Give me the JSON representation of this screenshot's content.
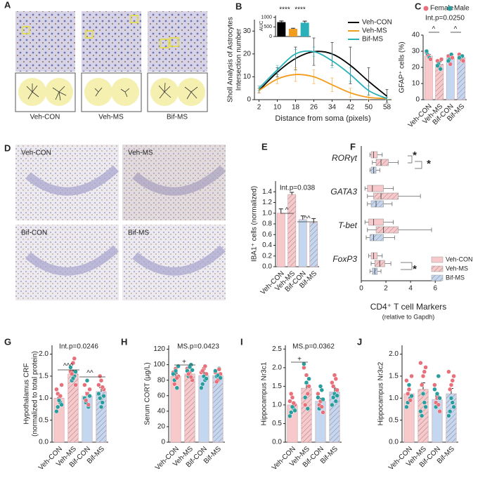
{
  "image_panels": {
    "A": {
      "label": "A",
      "captions": [
        "Veh-CON",
        "Veh-MS",
        "Bif-MS"
      ]
    },
    "D": {
      "label": "D",
      "captions": [
        "Veh-CON",
        "Veh-MS",
        "Bif-CON",
        "Bif-MS"
      ]
    }
  },
  "chart_data": [
    {
      "type": "line",
      "panel": "B",
      "y_label": [
        "Sholl Analysis of Astrocytes",
        "Intersection number"
      ],
      "x_label": "Distance from soma (pixels)",
      "x": [
        2,
        10,
        18,
        26,
        34,
        42,
        50,
        58
      ],
      "xlim": [
        0,
        60
      ],
      "xticks": [
        2,
        10,
        18,
        26,
        34,
        42,
        50,
        58
      ],
      "ylim": [
        0,
        35
      ],
      "yticks": [
        0,
        10,
        20,
        30
      ],
      "legend": "upper right",
      "series": [
        {
          "name": "Veh-CON",
          "color": "#000000",
          "values": [
            4,
            12,
            18,
            21,
            20,
            15,
            8,
            1.5
          ],
          "errors": [
            1,
            2,
            5,
            6,
            5,
            8,
            6,
            3
          ]
        },
        {
          "name": "Veh-MS",
          "color": "#f39c1e",
          "values": [
            4,
            9,
            11,
            10,
            6.5,
            3,
            1,
            0.5
          ],
          "errors": [
            1,
            2,
            3,
            3,
            3,
            2,
            1,
            0.5
          ]
        },
        {
          "name": "Bif-MS",
          "color": "#2ab0b8",
          "values": [
            5,
            13,
            20,
            21,
            17,
            11,
            4,
            0.5
          ],
          "errors": [
            1,
            2,
            2,
            2,
            3,
            3,
            2,
            0.5
          ]
        }
      ]
    },
    {
      "type": "bar",
      "y_label": [
        "AUC"
      ],
      "ylim": [
        0,
        1100
      ],
      "yticks": [
        0,
        500,
        1000
      ],
      "values": [
        750,
        400,
        720
      ],
      "errors": [
        60,
        30,
        80
      ],
      "colors": [
        "#000000",
        "#f39c1e",
        "#2ab0b8"
      ],
      "hatched": [
        false,
        false,
        false
      ],
      "annotations": [
        "****",
        "****"
      ]
    },
    {
      "type": "bar",
      "panel": "C",
      "y_label": [
        "GFAP⁺ cells (%)"
      ],
      "categories": [
        "Veh-CON",
        "Veh-MS",
        "Bif-CON",
        "Bif-MS"
      ],
      "ylim": [
        0,
        40
      ],
      "yticks": [
        0,
        10,
        20,
        30,
        40
      ],
      "values": [
        27,
        22,
        26,
        26
      ],
      "errors": [
        1,
        1.5,
        1.2,
        1
      ],
      "colors": [
        "#f8c9cb",
        "#f8c9cb",
        "#c3d7f0",
        "#c3d7f0"
      ],
      "hatched": [
        false,
        true,
        false,
        true
      ],
      "points": [
        [
          29,
          28,
          27,
          26,
          25,
          30
        ],
        [
          24,
          22,
          20,
          19,
          25,
          21
        ],
        [
          27,
          25,
          22,
          28,
          26,
          24
        ],
        [
          28,
          26,
          25,
          27,
          24,
          26
        ]
      ],
      "point_colors": [
        "#e8707a",
        "#2a9d9f"
      ],
      "legend": [
        {
          "name": "Female",
          "color": "#e8707a"
        },
        {
          "name": "Male",
          "color": "#2a9d9f"
        }
      ],
      "annotations": [
        "Int.p=0.0250",
        "^",
        "^"
      ]
    },
    {
      "type": "bar",
      "panel": "E",
      "y_label": [
        "IBA1⁺ cells (normalized)"
      ],
      "categories": [
        "Veh-CON",
        "Veh-MS",
        "Bif-CON",
        "Bif-MS"
      ],
      "ylim": [
        0,
        1.6
      ],
      "yticks": [
        {
          "value": 0,
          "label": "0.0"
        },
        {
          "value": 0.2,
          "label": "0.2"
        },
        {
          "value": 0.4,
          "label": "0.4"
        },
        {
          "value": 0.6,
          "label": "0.6"
        },
        {
          "value": 0.8,
          "label": "0.8"
        },
        {
          "value": 1,
          "label": "1.0"
        },
        {
          "value": 1.2,
          "label": "1.2"
        },
        {
          "value": 1.4,
          "label": "1.4"
        }
      ],
      "values": [
        1.0,
        1.35,
        0.88,
        0.82
      ],
      "errors": [
        0.08,
        0.04,
        0.07,
        0.08
      ],
      "colors": [
        "#f8c9cb",
        "#f8c9cb",
        "#c3d7f0",
        "#c3d7f0"
      ],
      "hatched": [
        false,
        true,
        false,
        true
      ],
      "annotations": [
        "Int.p=0.038",
        "^",
        "^^"
      ]
    },
    {
      "type": "box",
      "panel": "F",
      "categories": [
        "RORγt",
        "GATA3",
        "T-bet",
        "FoxP3"
      ],
      "x_label": "CD4⁺ T cell Markers",
      "x_sublabel": "(relative to Gapdh)",
      "xlim": [
        0,
        6.5
      ],
      "xticks": [
        0,
        2,
        4,
        6
      ],
      "series": [
        {
          "name": "Veh-CON",
          "color": "#f8c9cb",
          "hatched": false,
          "boxes": [
            [
              0.7,
              0.8,
              1.0,
              1.3,
              1.7
            ],
            [
              0.3,
              0.5,
              0.9,
              1.8,
              2.6
            ],
            [
              0.3,
              0.6,
              1.0,
              1.8,
              2.6
            ],
            [
              0.6,
              0.8,
              1.0,
              1.3,
              1.7
            ]
          ]
        },
        {
          "name": "Veh-MS",
          "color": "#f8c9cb",
          "hatched": true,
          "boxes": [
            [
              0.9,
              1.2,
              1.6,
              2.2,
              3.0
            ],
            [
              0.5,
              1.0,
              1.6,
              3.0,
              4.8
            ],
            [
              0.5,
              1.2,
              1.8,
              3.0,
              5.7
            ],
            [
              0.8,
              1.1,
              1.5,
              1.9,
              2.4
            ]
          ]
        },
        {
          "name": "Bif-MS",
          "color": "#c3d7f0",
          "hatched": true,
          "boxes": [
            [
              0.7,
              0.8,
              1.0,
              1.2,
              1.5
            ],
            [
              0.5,
              0.8,
              1.2,
              1.8,
              2.5
            ],
            [
              0.4,
              0.7,
              1.0,
              1.8,
              2.7
            ],
            [
              0.7,
              0.9,
              1.1,
              1.3,
              1.6
            ]
          ]
        }
      ],
      "annotations": [
        "*",
        "*",
        "*"
      ]
    },
    {
      "type": "bar",
      "panel": "G",
      "y_label": [
        "Hypothalamus CRF",
        "(normalized to total protein)"
      ],
      "categories": [
        "Veh-CON",
        "Veh-MS",
        "Bif-CON",
        "Bif-MS"
      ],
      "ylim": [
        0,
        2.2
      ],
      "yticks": [
        {
          "value": 0,
          "label": "0.0"
        },
        {
          "value": 0.5,
          "label": "0.5"
        },
        {
          "value": 1,
          "label": "1.0"
        },
        {
          "value": 1.5,
          "label": "1.5"
        },
        {
          "value": 2,
          "label": "2.0"
        }
      ],
      "values": [
        1.0,
        1.55,
        1.05,
        1.15
      ],
      "errors": [
        0.07,
        0.08,
        0.08,
        0.09
      ],
      "colors": [
        "#f8c9cb",
        "#f8c9cb",
        "#c3d7f0",
        "#c3d7f0"
      ],
      "hatched": [
        false,
        true,
        false,
        true
      ],
      "points": [
        [
          1.2,
          0.8,
          1.0,
          0.9,
          1.3,
          0.7,
          1.1,
          0.95,
          1.05,
          0.85
        ],
        [
          1.6,
          1.4,
          1.8,
          1.5,
          1.3,
          1.7,
          1.55,
          1.45,
          1.9,
          1.6
        ],
        [
          1.3,
          0.9,
          1.1,
          0.8,
          1.2,
          1.0,
          0.95,
          1.4,
          0.85,
          1.05
        ],
        [
          1.3,
          1.0,
          1.4,
          0.9,
          1.2,
          1.1,
          1.5,
          0.8,
          1.25,
          1.05
        ]
      ],
      "point_colors": [
        "#e8707a",
        "#2a9d9f"
      ],
      "annotations": [
        "Int.p=0.0246",
        "^^^",
        "^^"
      ]
    },
    {
      "type": "bar",
      "panel": "H",
      "y_label": [
        "Serum CORT (μg/L)"
      ],
      "categories": [
        "Veh-CON",
        "Veh-MS",
        "Bif-CON",
        "Bif-MS"
      ],
      "ylim": [
        0,
        125
      ],
      "yticks": [
        0,
        20,
        40,
        60,
        80,
        100,
        120
      ],
      "values": [
        85,
        88,
        86,
        86
      ],
      "errors": [
        4,
        3,
        4,
        3
      ],
      "colors": [
        "#f8c9cb",
        "#f8c9cb",
        "#c3d7f0",
        "#c3d7f0"
      ],
      "hatched": [
        false,
        true,
        false,
        true
      ],
      "points": [
        [
          90,
          80,
          95,
          70,
          85,
          88,
          75,
          92,
          83,
          98
        ],
        [
          95,
          85,
          90,
          100,
          80,
          92,
          88,
          97,
          84,
          93
        ],
        [
          90,
          75,
          95,
          80,
          88,
          70,
          92,
          85,
          98,
          82
        ],
        [
          90,
          85,
          80,
          95,
          88,
          92,
          78,
          86,
          94,
          83
        ]
      ],
      "point_colors": [
        "#e8707a",
        "#2a9d9f"
      ],
      "annotations": [
        "MS.p=0.0423",
        "+"
      ]
    },
    {
      "type": "bar",
      "panel": "I",
      "y_label": [
        "Hippocampus Nr3c1"
      ],
      "categories": [
        "Veh-CON",
        "Veh-MS",
        "Bif-CON",
        "Bif-MS"
      ],
      "ylim": [
        0,
        2.6
      ],
      "yticks": [
        {
          "value": 0,
          "label": "0.0"
        },
        {
          "value": 0.5,
          "label": "0.5"
        },
        {
          "value": 1,
          "label": "1.0"
        },
        {
          "value": 1.5,
          "label": "1.5"
        },
        {
          "value": 2,
          "label": "2.0"
        },
        {
          "value": 2.5,
          "label": "2.5"
        }
      ],
      "values": [
        1.0,
        1.45,
        1.1,
        1.35
      ],
      "errors": [
        0.07,
        0.12,
        0.08,
        0.1
      ],
      "colors": [
        "#f8c9cb",
        "#f8c9cb",
        "#c3d7f0",
        "#c3d7f0"
      ],
      "hatched": [
        false,
        true,
        false,
        true
      ],
      "points": [
        [
          1.1,
          0.8,
          1.2,
          0.9,
          1.0,
          0.7,
          1.3,
          0.95,
          1.05,
          0.85
        ],
        [
          2.0,
          1.2,
          1.8,
          0.9,
          1.5,
          2.1,
          1.0,
          1.6,
          1.3,
          1.7
        ],
        [
          1.3,
          0.9,
          1.1,
          1.4,
          0.8,
          1.2,
          1.0,
          1.5,
          0.95,
          1.15
        ],
        [
          1.6,
          1.2,
          1.8,
          1.1,
          1.4,
          1.0,
          1.5,
          1.3,
          1.7,
          1.25
        ]
      ],
      "point_colors": [
        "#e8707a",
        "#2a9d9f"
      ],
      "annotations": [
        "MS.p=0.0362",
        "+"
      ]
    },
    {
      "type": "bar",
      "panel": "J",
      "y_label": [
        "Hippocampus Nr3c2"
      ],
      "categories": [
        "Veh-CON",
        "Veh-MS",
        "Bif-CON",
        "Bif-MS"
      ],
      "ylim": [
        0,
        2.2
      ],
      "yticks": [
        {
          "value": 0,
          "label": "0.0"
        },
        {
          "value": 0.5,
          "label": "0.5"
        },
        {
          "value": 1,
          "label": "1.0"
        },
        {
          "value": 1.5,
          "label": "1.5"
        },
        {
          "value": 2,
          "label": "2.0"
        }
      ],
      "values": [
        1.1,
        1.2,
        0.97,
        1.1
      ],
      "errors": [
        0.08,
        0.15,
        0.08,
        0.12
      ],
      "colors": [
        "#f8c9cb",
        "#f8c9cb",
        "#c3d7f0",
        "#c3d7f0"
      ],
      "hatched": [
        false,
        true,
        false,
        true
      ],
      "points": [
        [
          1.4,
          0.9,
          1.2,
          1.0,
          1.5,
          0.8,
          1.1,
          1.3,
          0.95,
          1.05
        ],
        [
          1.8,
          0.6,
          1.5,
          0.9,
          1.7,
          0.7,
          1.3,
          1.1,
          1.6,
          0.8
        ],
        [
          1.3,
          0.8,
          1.0,
          1.5,
          0.7,
          1.2,
          0.9,
          1.1,
          0.85,
          1.0
        ],
        [
          1.6,
          0.7,
          1.3,
          0.9,
          1.5,
          0.6,
          1.2,
          1.0,
          1.4,
          0.8
        ]
      ],
      "point_colors": [
        "#e8707a",
        "#2a9d9f"
      ],
      "annotations": []
    }
  ]
}
